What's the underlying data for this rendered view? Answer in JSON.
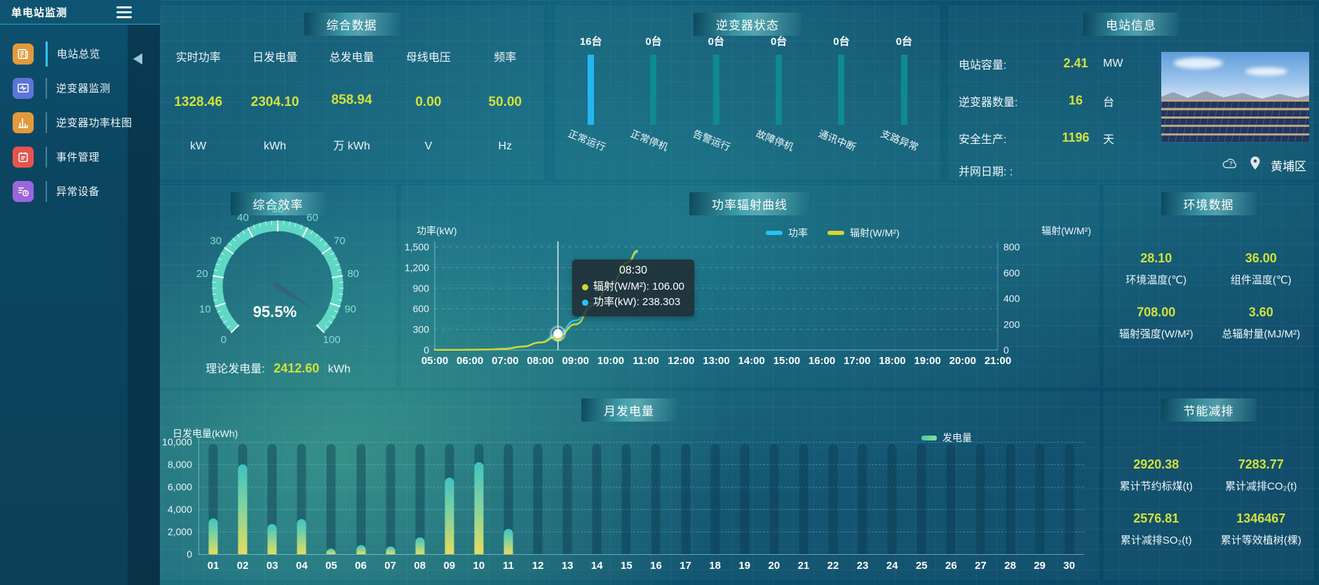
{
  "app": {
    "title": "单电站监测"
  },
  "sidebar": {
    "items": [
      {
        "label": "电站总览",
        "icon": "overview-icon",
        "color": "#e29a3c",
        "active": true
      },
      {
        "label": "逆变器监测",
        "icon": "inverter-monitor-icon",
        "color": "#5a74d8",
        "active": false
      },
      {
        "label": "逆变器功率柱图",
        "icon": "power-bar-chart-icon",
        "color": "#e29a3c",
        "active": false
      },
      {
        "label": "事件管理",
        "icon": "event-management-icon",
        "color": "#e8534e",
        "active": false
      },
      {
        "label": "异常设备",
        "icon": "abnormal-device-icon",
        "color": "#9a66dd",
        "active": false
      }
    ]
  },
  "summary": {
    "title": "综合数据",
    "metrics": [
      {
        "label": "实时功率",
        "value": "1328.46",
        "unit": "kW"
      },
      {
        "label": "日发电量",
        "value": "2304.10",
        "unit": "kWh"
      },
      {
        "label": "总发电量",
        "value": "858.94",
        "unit": "万 kWh"
      },
      {
        "label": "母线电压",
        "value": "0.00",
        "unit": "V"
      },
      {
        "label": "频率",
        "value": "50.00",
        "unit": "Hz"
      }
    ]
  },
  "inverter_status": {
    "title": "逆变器状态",
    "bar_color_active": "#23b7f2",
    "bar_color_idle": "#0f8a92",
    "items": [
      {
        "count": "16台",
        "label": "正常运行",
        "highlight": true
      },
      {
        "count": "0台",
        "label": "正常停机",
        "highlight": false
      },
      {
        "count": "0台",
        "label": "告警运行",
        "highlight": false
      },
      {
        "count": "0台",
        "label": "故障停机",
        "highlight": false
      },
      {
        "count": "0台",
        "label": "通讯中断",
        "highlight": false
      },
      {
        "count": "0台",
        "label": "支路异常",
        "highlight": false
      }
    ]
  },
  "station_info": {
    "title": "电站信息",
    "rows": [
      {
        "label": "电站容量:",
        "value": "2.41",
        "unit": "MW"
      },
      {
        "label": "逆变器数量:",
        "value": "16",
        "unit": "台"
      },
      {
        "label": "安全生产:",
        "value": "1196",
        "unit": "天"
      },
      {
        "label": "并网日期: :",
        "value": "",
        "unit": ""
      }
    ],
    "weather_icon": "cloud-unknown-icon",
    "location_icon": "location-pin-icon",
    "location": "黄埔区"
  },
  "environment": {
    "title": "环境数据",
    "cells": [
      {
        "value": "28.10",
        "label": "环境温度(℃)"
      },
      {
        "value": "36.00",
        "label": "组件温度(℃)"
      },
      {
        "value": "708.00",
        "label": "辐射强度(W/M²)"
      },
      {
        "value": "3.60",
        "label": "总辐射量(MJ/M²)"
      }
    ]
  },
  "energy_saving": {
    "title": "节能减排",
    "cells": [
      {
        "value": "2920.38",
        "label": "累计节约标煤(t)"
      },
      {
        "value": "7283.77",
        "label": "累计减排CO₂(t)"
      },
      {
        "value": "2576.81",
        "label": "累计减排SO₂(t)"
      },
      {
        "value": "1346467",
        "label": "累计等效植树(棵)"
      }
    ]
  },
  "chart_data": [
    {
      "id": "efficiency_gauge",
      "type": "gauge",
      "title": "综合效率",
      "value": 95.5,
      "display": "95.5%",
      "min": 0,
      "max": 100,
      "tick_step": 10,
      "arc_color": "#5ed8c5",
      "needle_color": "#30687a",
      "label_color": "#85ded2",
      "footer": {
        "label": "理论发电量:",
        "value": "2412.60",
        "unit": "kWh"
      }
    },
    {
      "id": "power_radiation_curve",
      "type": "line",
      "title": "功率辐射曲线",
      "left_axis": {
        "title": "功率(kW)",
        "range": [
          0,
          1500
        ],
        "ticks": [
          0,
          300,
          600,
          900,
          1200,
          1500
        ]
      },
      "right_axis": {
        "title": "辐射(W/M²)",
        "range": [
          0,
          800
        ],
        "ticks": [
          0,
          200,
          400,
          600,
          800
        ]
      },
      "x_range_minutes": [
        300,
        1260
      ],
      "x_ticks": [
        "05:00",
        "06:00",
        "07:00",
        "08:00",
        "09:00",
        "10:00",
        "11:00",
        "12:00",
        "13:00",
        "14:00",
        "15:00",
        "16:00",
        "17:00",
        "18:00",
        "19:00",
        "20:00",
        "21:00"
      ],
      "legend": [
        {
          "label": "功率",
          "color": "#29c3f2"
        },
        {
          "label": "辐射(W/M²)",
          "color": "#d3d531"
        }
      ],
      "series": [
        {
          "name": "功率",
          "axis": "left",
          "color": "#29c3f2",
          "points": [
            [
              300,
              2
            ],
            [
              330,
              2
            ],
            [
              360,
              4
            ],
            [
              390,
              8
            ],
            [
              420,
              18
            ],
            [
              450,
              50
            ],
            [
              480,
              112
            ],
            [
              510,
              238.3
            ],
            [
              540,
              430
            ],
            [
              570,
              690
            ],
            [
              600,
              980
            ],
            [
              630,
              1280
            ],
            [
              645,
              1420
            ]
          ]
        },
        {
          "name": "辐射(W/M²)",
          "axis": "right",
          "color": "#d3d531",
          "points": [
            [
              300,
              1
            ],
            [
              330,
              1
            ],
            [
              360,
              2
            ],
            [
              390,
              4
            ],
            [
              420,
              10
            ],
            [
              450,
              27
            ],
            [
              480,
              58
            ],
            [
              510,
              106
            ],
            [
              540,
              200
            ],
            [
              570,
              345
            ],
            [
              600,
              510
            ],
            [
              630,
              680
            ],
            [
              645,
              770
            ]
          ]
        }
      ],
      "tooltip": {
        "x_minutes": 510,
        "title": "08:30",
        "rows": [
          {
            "color": "#d3d531",
            "text": "辐射(W/M²): 106.00"
          },
          {
            "color": "#29c3f2",
            "text": "功率(kW): 238.303"
          }
        ]
      }
    },
    {
      "id": "monthly_generation",
      "type": "bar",
      "title": "月发电量",
      "ylabel": "日发电量(kWh)",
      "legend": "发电量",
      "ylim": [
        0,
        10000
      ],
      "yticks": [
        0,
        2000,
        4000,
        6000,
        8000,
        10000
      ],
      "bg_column_value": 9800,
      "categories": [
        "01",
        "02",
        "03",
        "04",
        "05",
        "06",
        "07",
        "08",
        "09",
        "10",
        "11",
        "12",
        "13",
        "14",
        "15",
        "16",
        "17",
        "18",
        "19",
        "20",
        "21",
        "22",
        "23",
        "24",
        "25",
        "26",
        "27",
        "28",
        "29",
        "30"
      ],
      "values": [
        3200,
        8000,
        2700,
        3100,
        500,
        800,
        700,
        1500,
        6800,
        8200,
        2250,
        0,
        0,
        0,
        0,
        0,
        0,
        0,
        0,
        0,
        0,
        0,
        0,
        0,
        0,
        0,
        0,
        0,
        0,
        0
      ]
    }
  ]
}
